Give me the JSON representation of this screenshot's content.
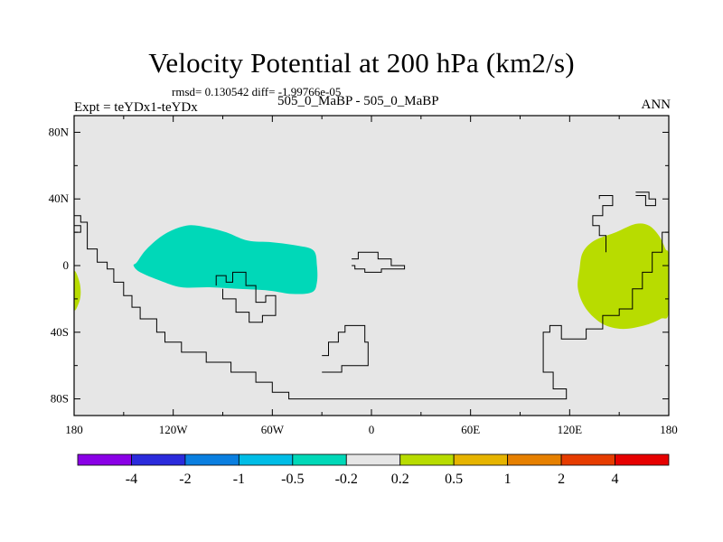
{
  "chart_data": {
    "type": "heatmap",
    "title": "Velocity Potential at 200 hPa (km2/s)",
    "stats_text": "rmsd= 0.130542  diff= -1.99766e-05",
    "left_text": "Expt = teYDx1-teYDx",
    "center_text": "505_0_MaBP - 505_0_MaBP",
    "right_text": "ANN",
    "x_ticks": [
      "180",
      "120W",
      "60W",
      "0",
      "60E",
      "120E",
      "180"
    ],
    "y_ticks": [
      "80N",
      "40N",
      "0",
      "40S",
      "80S"
    ],
    "xlim": [
      -180,
      180
    ],
    "ylim": [
      -90,
      90
    ],
    "background_color": "#e6e6e6",
    "regions": [
      {
        "name": "negative-region-atlantic",
        "level": "-0.5 to -0.2",
        "color": "#00d8b8",
        "points": [
          [
            -142,
            2
          ],
          [
            -136,
            10
          ],
          [
            -125,
            19
          ],
          [
            -112,
            24
          ],
          [
            -100,
            23
          ],
          [
            -88,
            20
          ],
          [
            -75,
            15
          ],
          [
            -60,
            14
          ],
          [
            -45,
            12
          ],
          [
            -35,
            9
          ],
          [
            -33,
            0
          ],
          [
            -33,
            -10
          ],
          [
            -36,
            -16
          ],
          [
            -48,
            -17
          ],
          [
            -62,
            -15
          ],
          [
            -80,
            -14
          ],
          [
            -98,
            -13
          ],
          [
            -115,
            -13
          ],
          [
            -128,
            -9
          ],
          [
            -140,
            -4
          ],
          [
            -144,
            0
          ]
        ]
      },
      {
        "name": "positive-region-pacific",
        "level": "0.2 to 0.5",
        "color": "#b8dc00",
        "points": [
          [
            126,
            -2
          ],
          [
            128,
            8
          ],
          [
            135,
            15
          ],
          [
            148,
            20
          ],
          [
            160,
            25
          ],
          [
            168,
            24
          ],
          [
            174,
            18
          ],
          [
            178,
            10
          ],
          [
            180,
            5
          ],
          [
            180,
            -28
          ],
          [
            175,
            -32
          ],
          [
            165,
            -36
          ],
          [
            152,
            -38
          ],
          [
            140,
            -35
          ],
          [
            130,
            -26
          ],
          [
            125,
            -14
          ]
        ]
      },
      {
        "name": "positive-region-edge",
        "level": "0.2 to 0.5",
        "color": "#b8dc00",
        "points": [
          [
            -180,
            -4
          ],
          [
            -177,
            -9
          ],
          [
            -176,
            -16
          ],
          [
            -177,
            -22
          ],
          [
            -180,
            -26
          ]
        ]
      }
    ],
    "coastlines": [
      [
        [
          -180,
          30
        ],
        [
          -176,
          30
        ],
        [
          -176,
          26
        ],
        [
          -172,
          26
        ],
        [
          -172,
          10
        ],
        [
          -166,
          10
        ],
        [
          -166,
          2
        ],
        [
          -160,
          2
        ],
        [
          -160,
          -2
        ],
        [
          -156,
          -2
        ],
        [
          -156,
          -10
        ],
        [
          -150,
          -10
        ],
        [
          -150,
          -18
        ],
        [
          -145,
          -18
        ],
        [
          -145,
          -25
        ],
        [
          -140,
          -25
        ],
        [
          -140,
          -32
        ],
        [
          -130,
          -32
        ],
        [
          -130,
          -40
        ],
        [
          -125,
          -40
        ],
        [
          -125,
          -46
        ],
        [
          -115,
          -46
        ],
        [
          -115,
          -52
        ],
        [
          -100,
          -52
        ],
        [
          -100,
          -58
        ],
        [
          -85,
          -58
        ],
        [
          -85,
          -64
        ],
        [
          -70,
          -64
        ],
        [
          -70,
          -70
        ],
        [
          -60,
          -70
        ],
        [
          -60,
          -76
        ],
        [
          -50,
          -76
        ],
        [
          -50,
          -80
        ],
        [
          118,
          -80
        ],
        [
          118,
          -74
        ],
        [
          110,
          -74
        ],
        [
          110,
          -64
        ],
        [
          104,
          -64
        ],
        [
          104,
          -40
        ],
        [
          108,
          -40
        ],
        [
          108,
          -36
        ],
        [
          115,
          -36
        ],
        [
          115,
          -44
        ],
        [
          130,
          -44
        ],
        [
          130,
          -38
        ],
        [
          140,
          -38
        ],
        [
          140,
          -30
        ],
        [
          150,
          -30
        ],
        [
          150,
          -26
        ],
        [
          158,
          -26
        ],
        [
          158,
          -14
        ],
        [
          164,
          -14
        ],
        [
          164,
          -4
        ],
        [
          170,
          -4
        ],
        [
          170,
          8
        ],
        [
          176,
          8
        ],
        [
          176,
          20
        ],
        [
          180,
          20
        ]
      ],
      [
        [
          -180,
          20
        ],
        [
          -176,
          20
        ],
        [
          -176,
          24
        ],
        [
          -180,
          24
        ]
      ],
      [
        [
          -94,
          -12
        ],
        [
          -94,
          -6
        ],
        [
          -88,
          -6
        ],
        [
          -88,
          -10
        ],
        [
          -84,
          -10
        ],
        [
          -84,
          -4
        ],
        [
          -76,
          -4
        ],
        [
          -76,
          -12
        ],
        [
          -70,
          -12
        ],
        [
          -70,
          -22
        ],
        [
          -64,
          -22
        ],
        [
          -64,
          -18
        ],
        [
          -58,
          -18
        ],
        [
          -58,
          -30
        ],
        [
          -66,
          -30
        ],
        [
          -66,
          -34
        ],
        [
          -74,
          -34
        ],
        [
          -74,
          -28
        ],
        [
          -82,
          -28
        ],
        [
          -82,
          -20
        ],
        [
          -90,
          -20
        ],
        [
          -90,
          -14
        ]
      ],
      [
        [
          -12,
          4
        ],
        [
          -8,
          4
        ],
        [
          -8,
          8
        ],
        [
          4,
          8
        ],
        [
          4,
          4
        ],
        [
          12,
          4
        ],
        [
          12,
          0
        ],
        [
          20,
          0
        ],
        [
          20,
          -2
        ],
        [
          6,
          -2
        ],
        [
          6,
          -4
        ],
        [
          -4,
          -4
        ],
        [
          -4,
          -2
        ],
        [
          -10,
          -2
        ],
        [
          -10,
          0
        ],
        [
          -12,
          0
        ]
      ],
      [
        [
          -30,
          -54
        ],
        [
          -26,
          -54
        ],
        [
          -26,
          -46
        ],
        [
          -20,
          -46
        ],
        [
          -20,
          -40
        ],
        [
          -16,
          -40
        ],
        [
          -16,
          -36
        ],
        [
          -4,
          -36
        ],
        [
          -4,
          -46
        ],
        [
          -2,
          -46
        ],
        [
          -2,
          -60
        ],
        [
          -18,
          -60
        ],
        [
          -18,
          -64
        ],
        [
          -30,
          -64
        ]
      ],
      [
        [
          138,
          40
        ],
        [
          138,
          42
        ],
        [
          146,
          42
        ],
        [
          146,
          36
        ],
        [
          140,
          36
        ],
        [
          140,
          30
        ],
        [
          134,
          30
        ],
        [
          134,
          24
        ],
        [
          138,
          24
        ],
        [
          138,
          18
        ],
        [
          142,
          18
        ],
        [
          142,
          8
        ]
      ],
      [
        [
          160,
          44
        ],
        [
          168,
          44
        ],
        [
          168,
          40
        ],
        [
          172,
          40
        ],
        [
          172,
          36
        ],
        [
          166,
          36
        ],
        [
          166,
          42
        ],
        [
          160,
          42
        ]
      ]
    ],
    "colorbar": {
      "boundary_labels": [
        "-4",
        "-2",
        "-1",
        "-0.5",
        "-0.2",
        "0.2",
        "0.5",
        "1",
        "2",
        "4"
      ],
      "colors": [
        "#8a00e6",
        "#2b2bdc",
        "#0a7fe0",
        "#00bde6",
        "#00d8b8",
        "#e6e6e6",
        "#b8dc00",
        "#e6b400",
        "#e68000",
        "#e63c00",
        "#e60000"
      ]
    }
  }
}
